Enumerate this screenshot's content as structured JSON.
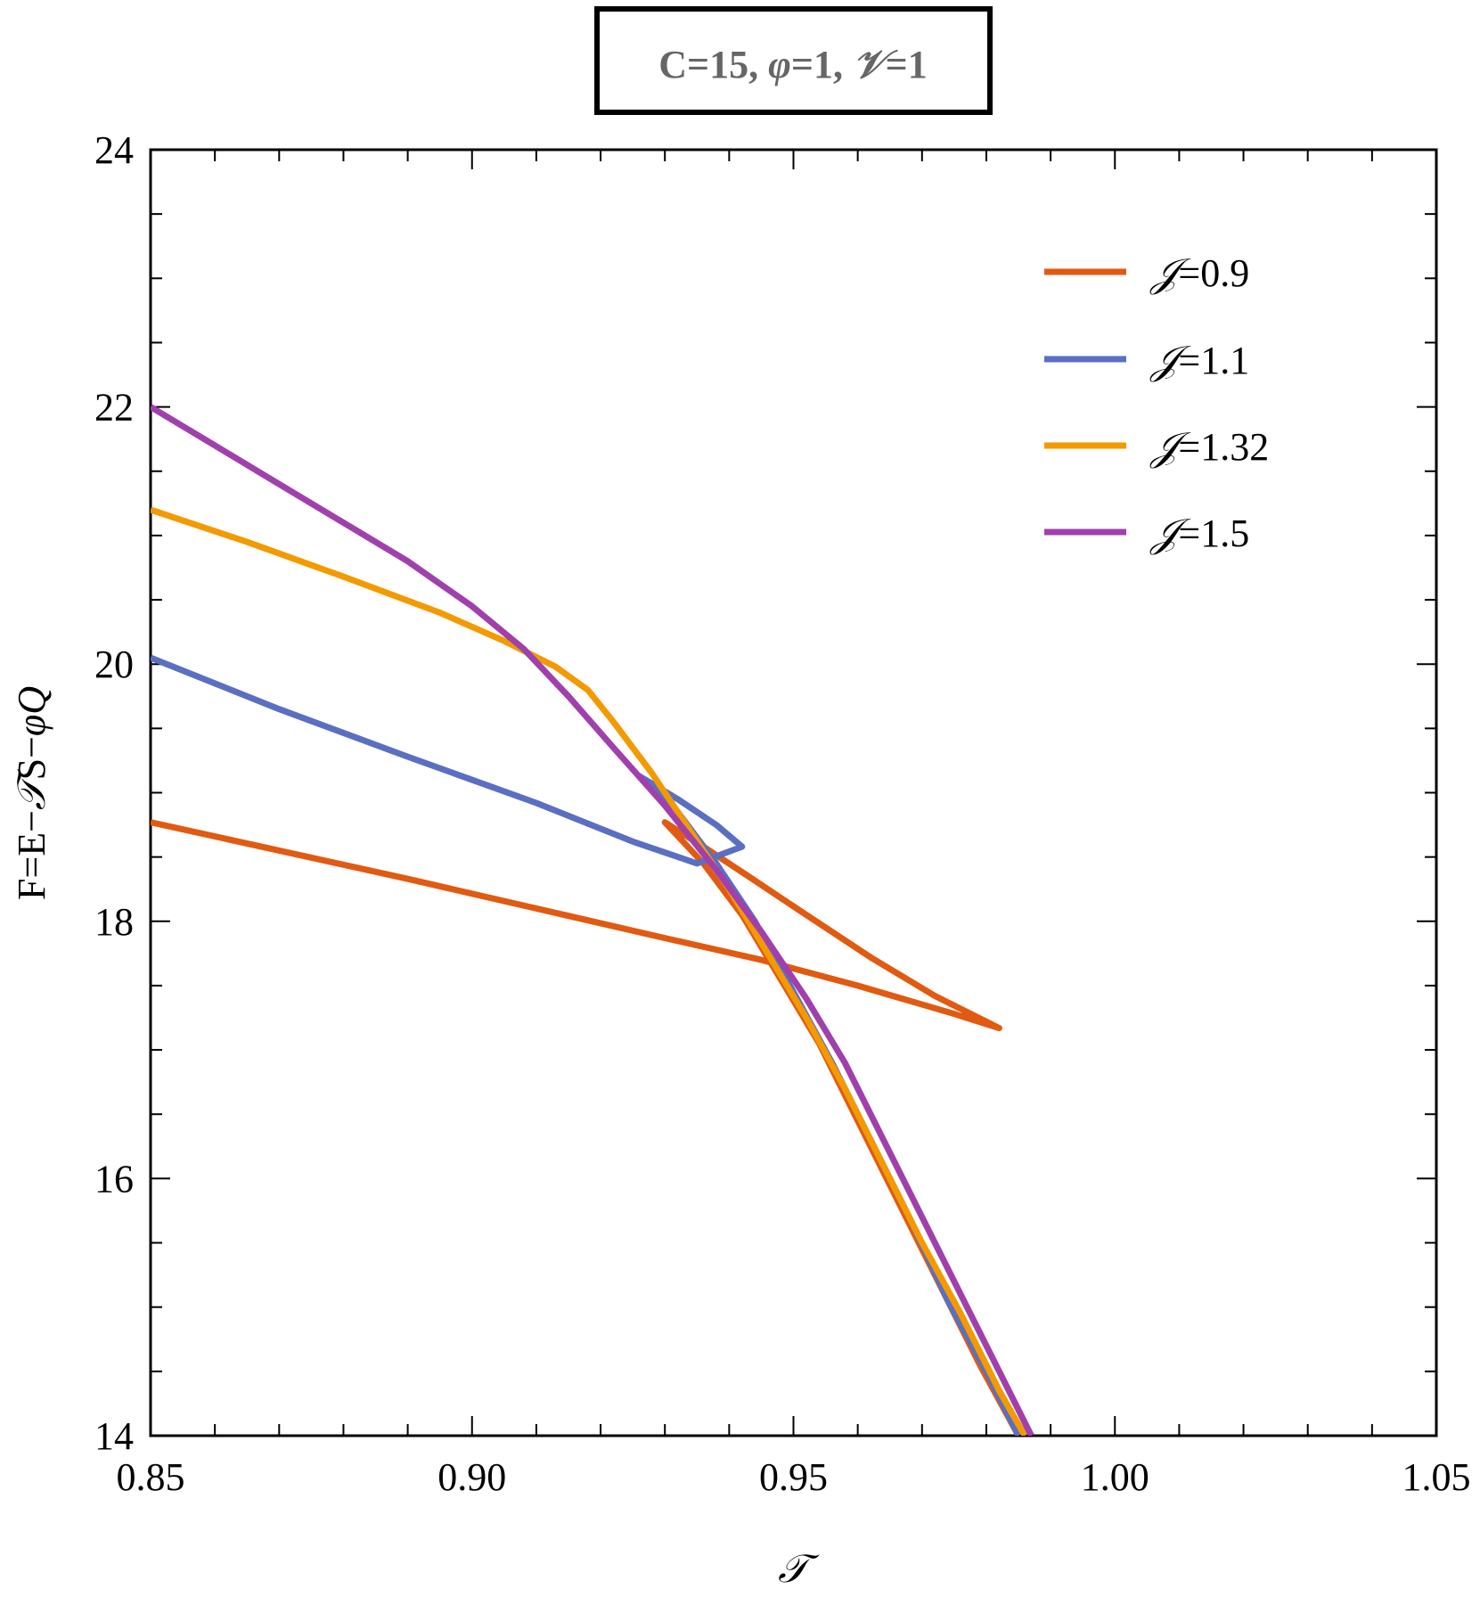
{
  "chart_data": {
    "type": "line",
    "title": "C=15, φ=1, 𝒱=1",
    "xlabel": "𝒯",
    "ylabel": "F=E−𝒯S−φQ",
    "xlim": [
      0.85,
      1.05
    ],
    "ylim": [
      14,
      24
    ],
    "x_ticks": [
      "0.85",
      "0.90",
      "0.95",
      "1.00",
      "1.05"
    ],
    "x_tick_values": [
      0.85,
      0.9,
      0.95,
      1.0,
      1.05
    ],
    "y_ticks": [
      "14",
      "16",
      "18",
      "20",
      "22",
      "24"
    ],
    "y_tick_values": [
      14,
      16,
      18,
      20,
      22,
      24
    ],
    "grid": false,
    "legend_position": "upper right (inside)",
    "series": [
      {
        "name": "𝒥=0.9",
        "color": "#e15a12",
        "points": [
          [
            0.85,
            18.77
          ],
          [
            0.87,
            18.55
          ],
          [
            0.89,
            18.33
          ],
          [
            0.91,
            18.1
          ],
          [
            0.93,
            17.87
          ],
          [
            0.945,
            17.7
          ],
          [
            0.96,
            17.5
          ],
          [
            0.975,
            17.28
          ],
          [
            0.982,
            17.17
          ],
          [
            0.972,
            17.42
          ],
          [
            0.962,
            17.72
          ],
          [
            0.952,
            18.05
          ],
          [
            0.943,
            18.35
          ],
          [
            0.936,
            18.58
          ],
          [
            0.93,
            18.77
          ],
          [
            0.936,
            18.45
          ],
          [
            0.942,
            18.05
          ],
          [
            0.948,
            17.55
          ],
          [
            0.954,
            17.05
          ],
          [
            0.96,
            16.45
          ],
          [
            0.966,
            15.85
          ],
          [
            0.973,
            15.15
          ],
          [
            0.979,
            14.55
          ],
          [
            0.985,
            14.0
          ]
        ]
      },
      {
        "name": "𝒥=1.1",
        "color": "#5b6fc2",
        "points": [
          [
            0.85,
            20.05
          ],
          [
            0.87,
            19.65
          ],
          [
            0.89,
            19.28
          ],
          [
            0.91,
            18.92
          ],
          [
            0.925,
            18.62
          ],
          [
            0.935,
            18.45
          ],
          [
            0.942,
            18.58
          ],
          [
            0.938,
            18.75
          ],
          [
            0.932,
            18.95
          ],
          [
            0.926,
            19.13
          ],
          [
            0.932,
            18.85
          ],
          [
            0.938,
            18.45
          ],
          [
            0.944,
            18.0
          ],
          [
            0.95,
            17.45
          ],
          [
            0.956,
            16.9
          ],
          [
            0.962,
            16.3
          ],
          [
            0.968,
            15.7
          ],
          [
            0.974,
            15.05
          ],
          [
            0.98,
            14.5
          ],
          [
            0.985,
            14.0
          ]
        ]
      },
      {
        "name": "𝒥=1.32",
        "color": "#f39a00",
        "points": [
          [
            0.85,
            21.2
          ],
          [
            0.865,
            20.95
          ],
          [
            0.88,
            20.68
          ],
          [
            0.895,
            20.4
          ],
          [
            0.905,
            20.18
          ],
          [
            0.913,
            19.98
          ],
          [
            0.918,
            19.8
          ],
          [
            0.922,
            19.55
          ],
          [
            0.928,
            19.15
          ],
          [
            0.934,
            18.7
          ],
          [
            0.94,
            18.25
          ],
          [
            0.946,
            17.75
          ],
          [
            0.952,
            17.25
          ],
          [
            0.958,
            16.7
          ],
          [
            0.964,
            16.1
          ],
          [
            0.97,
            15.5
          ],
          [
            0.976,
            14.95
          ],
          [
            0.982,
            14.35
          ],
          [
            0.986,
            14.0
          ]
        ]
      },
      {
        "name": "𝒥=1.5",
        "color": "#a040ad",
        "points": [
          [
            0.85,
            22.0
          ],
          [
            0.86,
            21.7
          ],
          [
            0.87,
            21.4
          ],
          [
            0.88,
            21.1
          ],
          [
            0.89,
            20.8
          ],
          [
            0.9,
            20.45
          ],
          [
            0.908,
            20.12
          ],
          [
            0.915,
            19.75
          ],
          [
            0.922,
            19.35
          ],
          [
            0.93,
            18.9
          ],
          [
            0.938,
            18.4
          ],
          [
            0.945,
            17.92
          ],
          [
            0.952,
            17.4
          ],
          [
            0.958,
            16.9
          ],
          [
            0.964,
            16.3
          ],
          [
            0.97,
            15.7
          ],
          [
            0.976,
            15.1
          ],
          [
            0.982,
            14.5
          ],
          [
            0.987,
            14.0
          ]
        ]
      }
    ]
  },
  "title_box": {
    "text_parts": [
      "C=15, ",
      "φ",
      "=1, ",
      "𝒱",
      "=1"
    ]
  },
  "axes": {
    "x_label": "𝒯",
    "y_label_parts": [
      "F=E−",
      "𝒯",
      "S−",
      "φQ"
    ]
  },
  "legend": {
    "items": [
      {
        "symbol": "𝒥",
        "value": "=0.9",
        "color": "#e15a12"
      },
      {
        "symbol": "𝒥",
        "value": "=1.1",
        "color": "#5b6fc2"
      },
      {
        "symbol": "𝒥",
        "value": "=1.32",
        "color": "#f39a00"
      },
      {
        "symbol": "𝒥",
        "value": "=1.5",
        "color": "#a040ad"
      }
    ]
  }
}
